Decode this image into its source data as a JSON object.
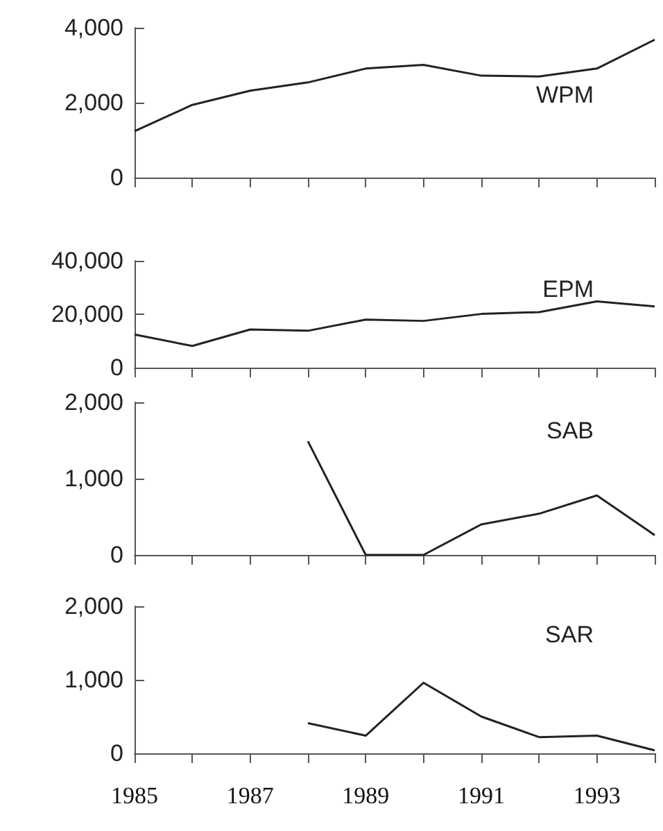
{
  "chart_data": [
    {
      "type": "line",
      "categories": [
        "1985",
        null,
        "1987",
        null,
        "1989",
        null,
        "1991",
        null,
        "1993",
        null
      ],
      "series": [
        {
          "name": "WPM",
          "color": "#222222",
          "values": [
            1240,
            1940,
            2320,
            2540,
            2910,
            3010,
            2720,
            2700,
            2910,
            3680
          ]
        }
      ],
      "ylim": [
        0,
        4000
      ],
      "yticks": [
        {
          "value": 0,
          "label": "0"
        },
        {
          "value": 2000,
          "label": "2,000"
        },
        {
          "value": 4000,
          "label": "4,000"
        }
      ],
      "tick_labels": "y"
    },
    {
      "type": "line",
      "categories": [
        "1985",
        null,
        "1987",
        null,
        "1989",
        null,
        "1991",
        null,
        "1993",
        null
      ],
      "series": [
        {
          "name": "EPM",
          "color": "#222222",
          "values": [
            12400,
            8100,
            14300,
            13800,
            18000,
            17500,
            20100,
            20800,
            24800,
            22900
          ]
        }
      ],
      "ylim": [
        0,
        40000
      ],
      "yticks": [
        {
          "value": 0,
          "label": "0"
        },
        {
          "value": 20000,
          "label": "20,000"
        },
        {
          "value": 40000,
          "label": "40,000"
        }
      ],
      "tick_labels": "y"
    },
    {
      "type": "line",
      "categories": [
        "1985",
        null,
        "1987",
        null,
        "1989",
        null,
        "1991",
        null,
        "1993",
        null
      ],
      "series": [
        {
          "name": "SAB",
          "color": "#222222",
          "values": [
            null,
            null,
            null,
            1490,
            0,
            0,
            400,
            540,
            780,
            260
          ]
        }
      ],
      "ylim": [
        0,
        2000
      ],
      "yticks": [
        {
          "value": 0,
          "label": "0"
        },
        {
          "value": 1000,
          "label": "1,000"
        },
        {
          "value": 2000,
          "label": "2,000"
        }
      ],
      "tick_labels": "y"
    },
    {
      "type": "line",
      "categories": [
        "1985",
        null,
        "1987",
        null,
        "1989",
        null,
        "1991",
        null,
        "1993",
        null
      ],
      "series": [
        {
          "name": "SAR",
          "color": "#222222",
          "values": [
            null,
            null,
            null,
            410,
            240,
            960,
            500,
            220,
            240,
            40
          ]
        }
      ],
      "ylim": [
        0,
        2000
      ],
      "yticks": [
        {
          "value": 0,
          "label": "0"
        },
        {
          "value": 1000,
          "label": "1,000"
        },
        {
          "value": 2000,
          "label": "2,000"
        }
      ]
    }
  ]
}
